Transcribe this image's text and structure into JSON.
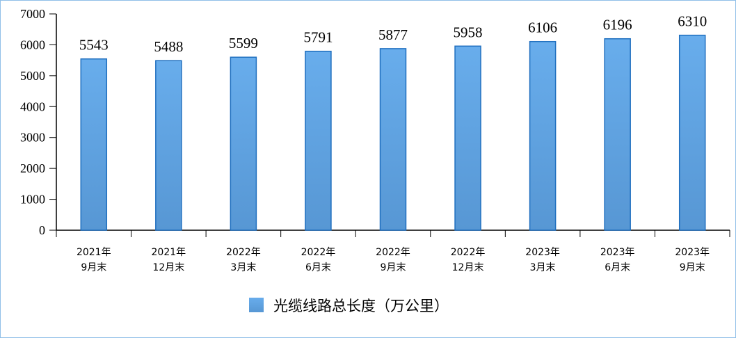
{
  "chart_data": {
    "type": "bar",
    "title": "",
    "xlabel": "",
    "ylabel": "",
    "ylim": [
      0,
      7000
    ],
    "yticks": [
      0,
      1000,
      2000,
      3000,
      4000,
      5000,
      6000,
      7000
    ],
    "grid": false,
    "legend_position": "bottom",
    "categories": [
      [
        "2021年",
        "9月末"
      ],
      [
        "2021年",
        "12月末"
      ],
      [
        "2022年",
        "3月末"
      ],
      [
        "2022年",
        "6月末"
      ],
      [
        "2022年",
        "9月末"
      ],
      [
        "2022年",
        "12月末"
      ],
      [
        "2023年",
        "3月末"
      ],
      [
        "2023年",
        "6月末"
      ],
      [
        "2023年",
        "9月末"
      ]
    ],
    "series": [
      {
        "name": "光缆线路总长度（万公里）",
        "values": [
          5543,
          5488,
          5599,
          5791,
          5877,
          5958,
          6106,
          6196,
          6310
        ],
        "color": "#5b9bd5"
      }
    ],
    "data_labels": true
  }
}
